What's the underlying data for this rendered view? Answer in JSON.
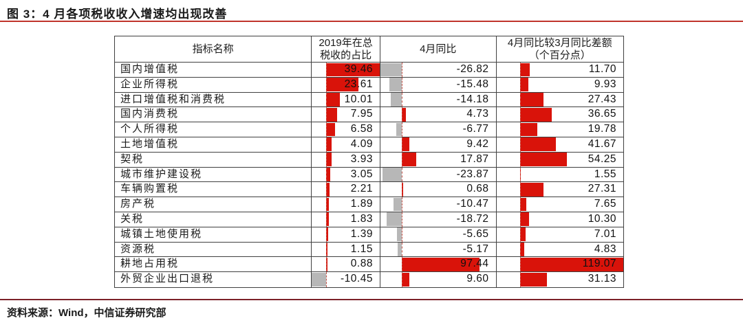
{
  "figure": {
    "title": "图 3：4 月各项税收收入增速均出现改善",
    "source_note": "资料来源：Wind，中信证券研究部"
  },
  "colors": {
    "positive_bar": "#d9130a",
    "negative_bar": "#b7b7b7",
    "title_rule": "#c0342b",
    "footer_rule": "#7c2128"
  },
  "chart_data": {
    "type": "table",
    "title": "图 3：4 月各项税收收入增速均出现改善",
    "subtitle": "",
    "legend_position": "none",
    "bar_style": "excel-data-bars-in-cells",
    "columns": [
      "指标名称",
      "2019年在总税收的占比",
      "4月同比",
      "4月同比较3月同比差额（个百分点）"
    ],
    "rows": [
      {
        "name": "国内增值税",
        "share": 39.46,
        "yoy": -26.82,
        "diff": 11.7
      },
      {
        "name": "企业所得税",
        "share": 23.61,
        "yoy": -15.48,
        "diff": 9.93
      },
      {
        "name": "进口增值税和消费税",
        "share": 10.01,
        "yoy": -14.18,
        "diff": 27.43
      },
      {
        "name": "国内消费税",
        "share": 7.95,
        "yoy": 4.73,
        "diff": 36.65
      },
      {
        "name": "个人所得税",
        "share": 6.58,
        "yoy": -6.77,
        "diff": 19.78
      },
      {
        "name": "土地增值税",
        "share": 4.09,
        "yoy": 9.42,
        "diff": 41.67
      },
      {
        "name": "契税",
        "share": 3.93,
        "yoy": 17.87,
        "diff": 54.25
      },
      {
        "name": "城市维护建设税",
        "share": 3.05,
        "yoy": -23.87,
        "diff": 1.55
      },
      {
        "name": "车辆购置税",
        "share": 2.21,
        "yoy": 0.68,
        "diff": 27.31
      },
      {
        "name": "房产税",
        "share": 1.89,
        "yoy": -10.47,
        "diff": 7.65
      },
      {
        "name": "关税",
        "share": 1.83,
        "yoy": -18.72,
        "diff": 10.3
      },
      {
        "name": "城镇土地使用税",
        "share": 1.39,
        "yoy": -5.65,
        "diff": 7.01
      },
      {
        "name": "资源税",
        "share": 1.15,
        "yoy": -5.17,
        "diff": 4.83
      },
      {
        "name": "耕地占用税",
        "share": 0.88,
        "yoy": 97.44,
        "diff": 119.07
      },
      {
        "name": "外贸企业出口退税",
        "share": -10.45,
        "yoy": 9.6,
        "diff": 31.13
      }
    ]
  }
}
